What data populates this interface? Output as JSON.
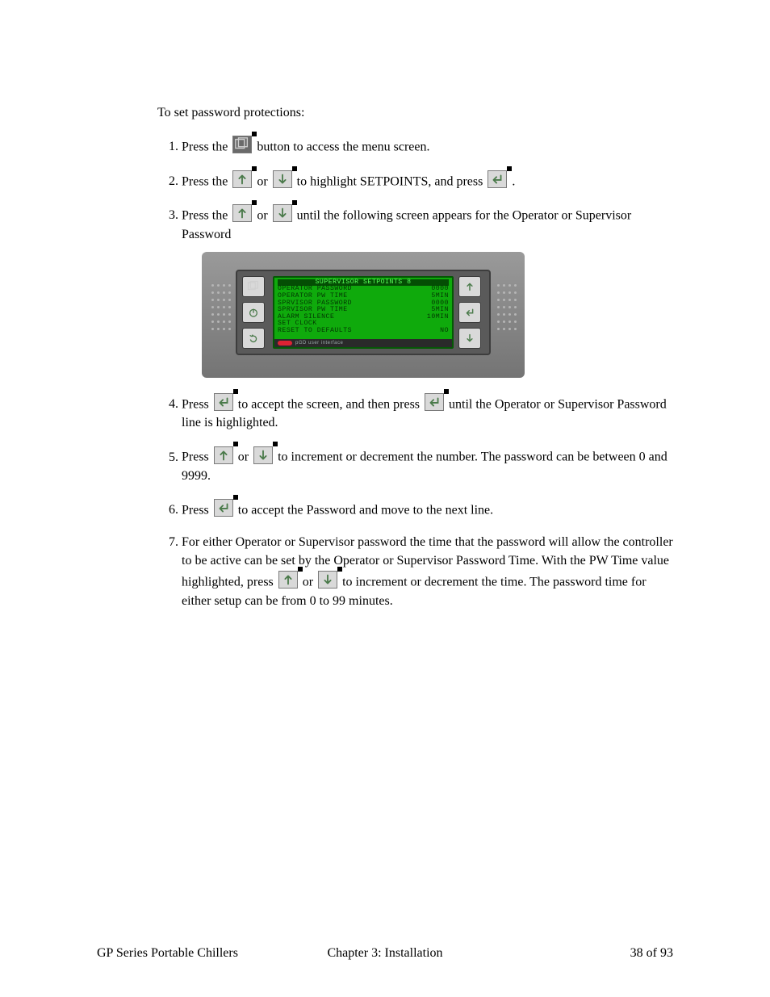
{
  "intro": "To set password protections:",
  "steps": {
    "s1a": "Press the ",
    "s1b": " button to access the menu screen.",
    "s2a": "Press the ",
    "s2or": " or ",
    "s2b": " to highlight SETPOINTS, and press ",
    "s2c": ".",
    "s3a": "Press the ",
    "s3or": " or ",
    "s3b": " until the following screen appears for the Operator or Supervisor Password",
    "s4a": "Press ",
    "s4b": " to accept the screen, and then press ",
    "s4c": " until the Operator or Supervisor Password line is highlighted.",
    "s5a": "Press ",
    "s5or": " or ",
    "s5b": " to increment or decrement the number.  The password can be between 0 and 9999.",
    "s6a": "Press ",
    "s6b": " to accept the Password and move to the next line.",
    "s7a": "For either Operator or Supervisor password the time that the password will allow the controller to be active can be set by the Operator or Supervisor Password Time.  With the PW Time value highlighted, press ",
    "s7or": " or ",
    "s7b": " to increment or decrement the time.  The password time for either setup can be from 0 to 99 minutes."
  },
  "lcd": {
    "header": "SUPERVISOR SETPOINTS 8",
    "rows": [
      [
        "OPERATOR PASSWORD",
        "0000"
      ],
      [
        "OPERATOR PW TIME",
        "5MIN"
      ],
      [
        "SPRVISOR PASSWORD",
        "0000"
      ],
      [
        "SPRVISOR PW TIME",
        "5MIN"
      ],
      [
        "ALARM SILENCE",
        "10MIN"
      ],
      [
        "SET CLOCK",
        ""
      ],
      [
        "RESET TO DEFAULTS",
        "NO"
      ]
    ],
    "footer_brand": "CAREL",
    "footer_text": "pGD  user interface"
  },
  "footer": {
    "left": "GP Series Portable Chillers",
    "center": "Chapter 3: Installation",
    "right": "38 of 93"
  },
  "colors": {
    "lcd_bg": "#0faa0c",
    "lcd_text": "#033703",
    "device_bg": "#808080",
    "btn_bg": "#d9d9d9"
  }
}
